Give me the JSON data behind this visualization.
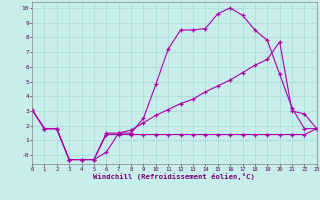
{
  "bg_color": "#c8eeec",
  "grid_color": "#a8d8d8",
  "line_color": "#aa00aa",
  "xlim": [
    0,
    23
  ],
  "ylim": [
    -0.6,
    10.4
  ],
  "xlabel": "Windchill (Refroidissement éolien,°C)",
  "xtick_labels": [
    "0",
    "1",
    "2",
    "3",
    "4",
    "5",
    "6",
    "7",
    "8",
    "9",
    "10",
    "11",
    "12",
    "13",
    "14",
    "15",
    "16",
    "17",
    "18",
    "19",
    "20",
    "21",
    "22",
    "23"
  ],
  "ytick_labels": [
    "10",
    "9",
    "8",
    "7",
    "6",
    "5",
    "4",
    "3",
    "2",
    "1",
    "-0"
  ],
  "ytick_vals": [
    10,
    9,
    8,
    7,
    6,
    5,
    4,
    3,
    2,
    1,
    0
  ],
  "s1_x": [
    0,
    1,
    2,
    3,
    4,
    5,
    6,
    7,
    8,
    9,
    10,
    11,
    12,
    13,
    14,
    15,
    16,
    17,
    18,
    19,
    20,
    21,
    22,
    23
  ],
  "s1_y": [
    3.1,
    1.8,
    1.8,
    -0.3,
    -0.3,
    -0.3,
    0.2,
    1.5,
    1.5,
    2.5,
    4.8,
    7.2,
    8.5,
    8.5,
    8.6,
    9.6,
    10.0,
    9.5,
    8.5,
    7.8,
    5.5,
    3.2,
    1.8,
    1.8
  ],
  "s2_x": [
    0,
    1,
    2,
    3,
    4,
    5,
    6,
    7,
    8,
    9,
    10,
    11,
    12,
    13,
    14,
    15,
    16,
    17,
    18,
    19,
    20,
    21,
    22,
    23
  ],
  "s2_y": [
    3.1,
    1.8,
    1.8,
    -0.3,
    -0.3,
    -0.3,
    1.5,
    1.5,
    1.7,
    2.2,
    2.7,
    3.1,
    3.5,
    3.8,
    4.3,
    4.7,
    5.1,
    5.6,
    6.1,
    6.5,
    7.7,
    3.0,
    2.8,
    1.8
  ],
  "s3_x": [
    0,
    1,
    2,
    3,
    4,
    5,
    6,
    7,
    8,
    9,
    10,
    11,
    12,
    13,
    14,
    15,
    16,
    17,
    18,
    19,
    20,
    21,
    22,
    23
  ],
  "s3_y": [
    3.1,
    1.8,
    1.8,
    -0.3,
    -0.3,
    -0.3,
    1.4,
    1.4,
    1.4,
    1.4,
    1.4,
    1.4,
    1.4,
    1.4,
    1.4,
    1.4,
    1.4,
    1.4,
    1.4,
    1.4,
    1.4,
    1.4,
    1.4,
    1.8
  ]
}
